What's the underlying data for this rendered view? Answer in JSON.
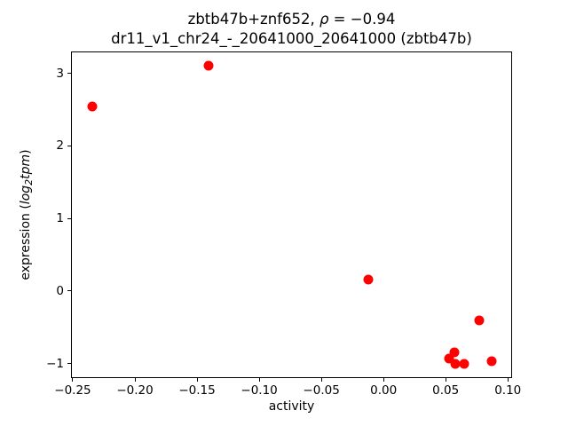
{
  "figure": {
    "background": "#ffffff",
    "title_line1": {
      "pre": "zbtb47b+znf652, ",
      "rho": "ρ",
      "post": " = −0.94"
    },
    "title_line2": "dr11_v1_chr24_-_20641000_20641000 (zbtb47b)",
    "xlabel": "activity",
    "ylabel": {
      "pre": "expression (",
      "log": "log",
      "sub": "2",
      "tpm": "tpm",
      "post": ")"
    }
  },
  "chart_data": {
    "type": "scatter",
    "title": "zbtb47b+znf652, ρ = −0.94",
    "subtitle": "dr11_v1_chr24_-_20641000_20641000 (zbtb47b)",
    "xlabel": "activity",
    "ylabel": "expression (log2 tpm)",
    "marker_color": "#ff0000",
    "marker_diameter_px": 11,
    "grid": false,
    "legend": null,
    "xlim": [
      -0.2514,
      0.1034
    ],
    "ylim": [
      -1.2,
      3.3
    ],
    "xtick_values": [
      -0.25,
      -0.2,
      -0.15,
      -0.1,
      -0.05,
      0.0,
      0.05,
      0.1
    ],
    "xtick_labels": [
      "−0.25",
      "−0.20",
      "−0.15",
      "−0.10",
      "−0.05",
      "0.00",
      "0.05",
      "0.10"
    ],
    "ytick_values": [
      -1,
      0,
      1,
      2,
      3
    ],
    "ytick_labels": [
      "−1",
      "0",
      "1",
      "2",
      "3"
    ],
    "points": [
      {
        "x": -0.234,
        "y": 2.54
      },
      {
        "x": -0.141,
        "y": 3.11
      },
      {
        "x": -0.012,
        "y": 0.16
      },
      {
        "x": 0.077,
        "y": -0.4
      },
      {
        "x": 0.057,
        "y": -0.85
      },
      {
        "x": 0.053,
        "y": -0.93
      },
      {
        "x": 0.058,
        "y": -1.0
      },
      {
        "x": 0.065,
        "y": -1.01
      },
      {
        "x": 0.087,
        "y": -0.97
      }
    ]
  }
}
